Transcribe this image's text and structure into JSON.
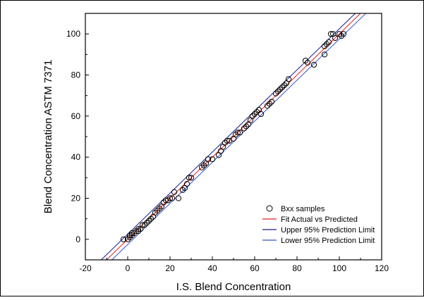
{
  "chart_data": {
    "type": "scatter",
    "xlabel": "I.S. Blend Concentration",
    "ylabel": "Blend Concentration ASTM 7371",
    "xlim": [
      -20,
      120
    ],
    "ylim": [
      -10,
      110
    ],
    "x_ticks": [
      -20,
      0,
      20,
      40,
      60,
      80,
      100,
      120
    ],
    "y_ticks": [
      0,
      20,
      40,
      60,
      80,
      100
    ],
    "x_tick_labels": [
      "-20",
      "0",
      "20",
      "40",
      "60",
      "80",
      "100",
      "120"
    ],
    "y_tick_labels": [
      "0",
      "20",
      "40",
      "60",
      "80",
      "100"
    ],
    "grid": false,
    "legend_position": "bottom-right",
    "series": [
      {
        "name": "Bxx samples",
        "kind": "scatter",
        "marker": "open-circle",
        "color": "#000000",
        "points": [
          [
            -2,
            0
          ],
          [
            0,
            0
          ],
          [
            1,
            1
          ],
          [
            1,
            2
          ],
          [
            2,
            2
          ],
          [
            2,
            3
          ],
          [
            3,
            3
          ],
          [
            4,
            4
          ],
          [
            5,
            4
          ],
          [
            5,
            5
          ],
          [
            6,
            5
          ],
          [
            7,
            7
          ],
          [
            8,
            7
          ],
          [
            9,
            8
          ],
          [
            10,
            9
          ],
          [
            11,
            10
          ],
          [
            12,
            11
          ],
          [
            13,
            13
          ],
          [
            14,
            14
          ],
          [
            15,
            15
          ],
          [
            16,
            16
          ],
          [
            17,
            18
          ],
          [
            18,
            19
          ],
          [
            19,
            19
          ],
          [
            20,
            20
          ],
          [
            21,
            20
          ],
          [
            22,
            23
          ],
          [
            24,
            20
          ],
          [
            26,
            24
          ],
          [
            27,
            25
          ],
          [
            28,
            27
          ],
          [
            29,
            30
          ],
          [
            30,
            30
          ],
          [
            35,
            35
          ],
          [
            36,
            36
          ],
          [
            37,
            37
          ],
          [
            38,
            39
          ],
          [
            40,
            39
          ],
          [
            43,
            41
          ],
          [
            44,
            43
          ],
          [
            45,
            45
          ],
          [
            46,
            47
          ],
          [
            47,
            48
          ],
          [
            48,
            48
          ],
          [
            50,
            49
          ],
          [
            51,
            51
          ],
          [
            52,
            52
          ],
          [
            53,
            52
          ],
          [
            55,
            54
          ],
          [
            56,
            55
          ],
          [
            57,
            56
          ],
          [
            58,
            58
          ],
          [
            59,
            60
          ],
          [
            60,
            61
          ],
          [
            61,
            62
          ],
          [
            62,
            63
          ],
          [
            63,
            61
          ],
          [
            66,
            65
          ],
          [
            67,
            66
          ],
          [
            68,
            67
          ],
          [
            70,
            71
          ],
          [
            71,
            72
          ],
          [
            72,
            73
          ],
          [
            73,
            74
          ],
          [
            74,
            75
          ],
          [
            75,
            76
          ],
          [
            76,
            78
          ],
          [
            84,
            87
          ],
          [
            85,
            86
          ],
          [
            88,
            85
          ],
          [
            93,
            90
          ],
          [
            93,
            94
          ],
          [
            94,
            95
          ],
          [
            95,
            96
          ],
          [
            96,
            100
          ],
          [
            97,
            100
          ],
          [
            98,
            98
          ],
          [
            100,
            100
          ],
          [
            101,
            99
          ],
          [
            102,
            100
          ]
        ]
      },
      {
        "name": "Fit Actual vs Predicted",
        "kind": "line",
        "color": "#e02020",
        "x": [
          -10,
          110
        ],
        "y": [
          -10,
          110
        ]
      },
      {
        "name": "Upper 95% Prediction Limit",
        "kind": "line",
        "color": "#1a1a8c",
        "x": [
          -12.5,
          107.5
        ],
        "y": [
          -10,
          110
        ]
      },
      {
        "name": "Lower 95% Prediction Limit",
        "kind": "line",
        "color": "#3355cc",
        "x": [
          -7.5,
          112.5
        ],
        "y": [
          -10,
          110
        ]
      }
    ]
  }
}
